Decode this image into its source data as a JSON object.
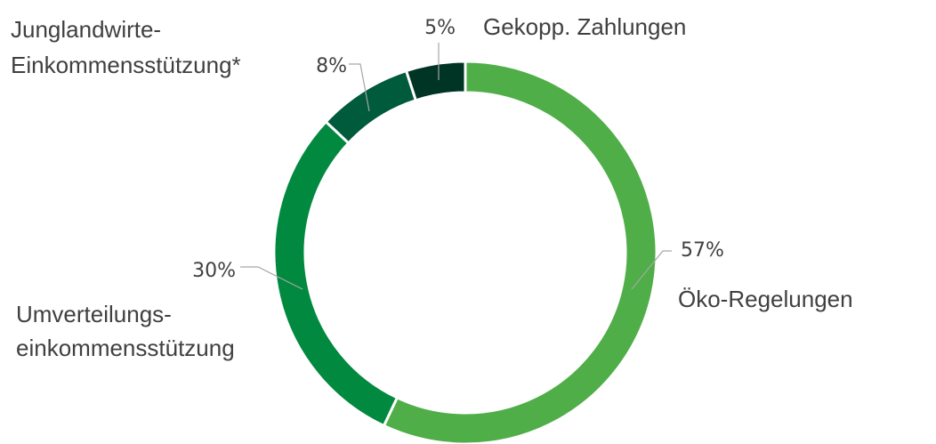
{
  "chart_data": {
    "type": "donut",
    "categories": [
      [
        "Öko-Regelungen"
      ],
      [
        "Umverteilungs-",
        "einkommensstützung"
      ],
      [
        "Junglandwirte-",
        "Einkommensstützung*"
      ],
      [
        "Gekopp. Zahlungen"
      ]
    ],
    "values": [
      57,
      30,
      8,
      5
    ],
    "value_labels": [
      "57%",
      "30%",
      "8%",
      "5%"
    ],
    "colors": [
      "#4fae48",
      "#00893f",
      "#005a3c",
      "#003425"
    ]
  }
}
